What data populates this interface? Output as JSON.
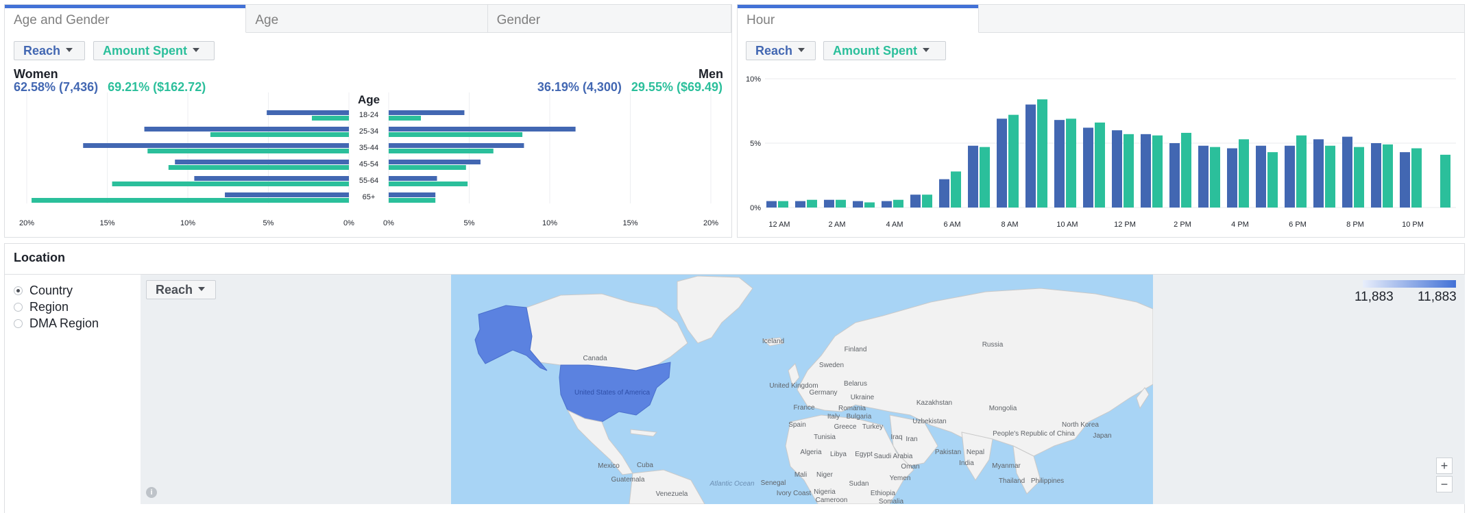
{
  "age_panel": {
    "tabs": [
      "Age and Gender",
      "Age",
      "Gender"
    ],
    "active_tab": 0,
    "reach_label": "Reach",
    "spent_label": "Amount Spent",
    "women": {
      "label": "Women",
      "reach": "62.58% (7,436)",
      "spent": "69.21% ($162.72)"
    },
    "men": {
      "label": "Men",
      "reach": "36.19% (4,300)",
      "spent": "29.55% ($69.49)"
    }
  },
  "hour_panel": {
    "tab": "Hour",
    "reach_label": "Reach",
    "spent_label": "Amount Spent"
  },
  "location": {
    "title": "Location",
    "options": [
      "Country",
      "Region",
      "DMA Region"
    ],
    "selected": 0,
    "metric_label": "Reach",
    "legend_min": "11,883",
    "legend_max": "11,883",
    "zoom_in": "+",
    "zoom_out": "−",
    "info": "i",
    "map_labels": [
      "Canada",
      "United States of America",
      "Iceland",
      "Finland",
      "Sweden",
      "Russia",
      "United Kingdom",
      "Germany",
      "Belarus",
      "Ukraine",
      "France",
      "Romania",
      "Italy",
      "Bulgaria",
      "Spain",
      "Greece",
      "Turkey",
      "Tunisia",
      "Iraq",
      "Iran",
      "Kazakhstan",
      "Mongolia",
      "Uzbekistan",
      "North Korea",
      "Japan",
      "People's Republic of China",
      "Algeria",
      "Libya",
      "Egypt",
      "Saudi Arabia",
      "Pakistan",
      "Nepal",
      "India",
      "Oman",
      "Yemen",
      "Myanmar",
      "Mali",
      "Niger",
      "Sudan",
      "Thailand",
      "Philippines",
      "Mexico",
      "Cuba",
      "Guatemala",
      "Venezuela",
      "Atlantic Ocean",
      "Senegal",
      "Ivory Coast",
      "Nigeria",
      "Cameroon",
      "Ethiopia",
      "Somalia"
    ]
  },
  "chart_data": [
    {
      "type": "bar",
      "orientation": "horizontal",
      "title": "Age",
      "categories": [
        "18-24",
        "25-34",
        "35-44",
        "45-54",
        "55-64",
        "65+"
      ],
      "series": [
        {
          "name": "Women",
          "metric": "Reach",
          "values": [
            5.1,
            12.7,
            16.5,
            10.8,
            9.6,
            7.7
          ]
        },
        {
          "name": "Women",
          "metric": "Amount Spent",
          "values": [
            2.3,
            8.6,
            12.5,
            11.2,
            14.7,
            19.7
          ]
        },
        {
          "name": "Men",
          "metric": "Reach",
          "values": [
            4.7,
            11.6,
            8.4,
            5.7,
            3.0,
            2.9
          ]
        },
        {
          "name": "Men",
          "metric": "Amount Spent",
          "values": [
            2.0,
            8.3,
            6.5,
            4.8,
            4.9,
            2.9
          ]
        }
      ],
      "xlim": [
        0,
        20
      ],
      "ticks_left": [
        "20%",
        "15%",
        "10%",
        "5%",
        "0%"
      ],
      "ticks_right": [
        "0%",
        "5%",
        "10%",
        "15%",
        "20%"
      ],
      "colors": {
        "reach": "#4267b2",
        "spent": "#2bbf9b"
      },
      "grid": true
    },
    {
      "type": "bar",
      "x": [
        "12 AM",
        "1 AM",
        "2 AM",
        "3 AM",
        "4 AM",
        "5 AM",
        "6 AM",
        "7 AM",
        "8 AM",
        "9 AM",
        "10 AM",
        "11 AM",
        "12 PM",
        "1 PM",
        "2 PM",
        "3 PM",
        "4 PM",
        "5 PM",
        "6 PM",
        "7 PM",
        "8 PM",
        "9 PM",
        "10 PM",
        "11 PM"
      ],
      "x_tick_labels": [
        "12 AM",
        "2 AM",
        "4 AM",
        "6 AM",
        "8 AM",
        "10 AM",
        "12 PM",
        "2 PM",
        "4 PM",
        "6 PM",
        "8 PM",
        "10 PM"
      ],
      "series": [
        {
          "name": "Reach",
          "values": [
            0.5,
            0.5,
            0.6,
            0.5,
            0.5,
            1.0,
            2.2,
            4.8,
            6.9,
            8.0,
            6.8,
            6.2,
            6.0,
            5.7,
            5.0,
            4.8,
            4.6,
            4.8,
            4.8,
            5.3,
            5.5,
            5.0,
            4.3,
            0
          ]
        },
        {
          "name": "Amount Spent",
          "values": [
            0.5,
            0.6,
            0.6,
            0.4,
            0.6,
            1.0,
            2.8,
            4.7,
            7.2,
            8.4,
            6.9,
            6.6,
            5.7,
            5.6,
            5.8,
            4.7,
            5.3,
            4.3,
            5.6,
            4.8,
            4.7,
            4.9,
            4.6,
            4.1
          ]
        }
      ],
      "ylim": [
        0,
        10
      ],
      "y_ticks": [
        "0%",
        "5%",
        "10%"
      ],
      "colors": {
        "reach": "#4267b2",
        "spent": "#2bbf9b"
      },
      "grid": true
    }
  ]
}
